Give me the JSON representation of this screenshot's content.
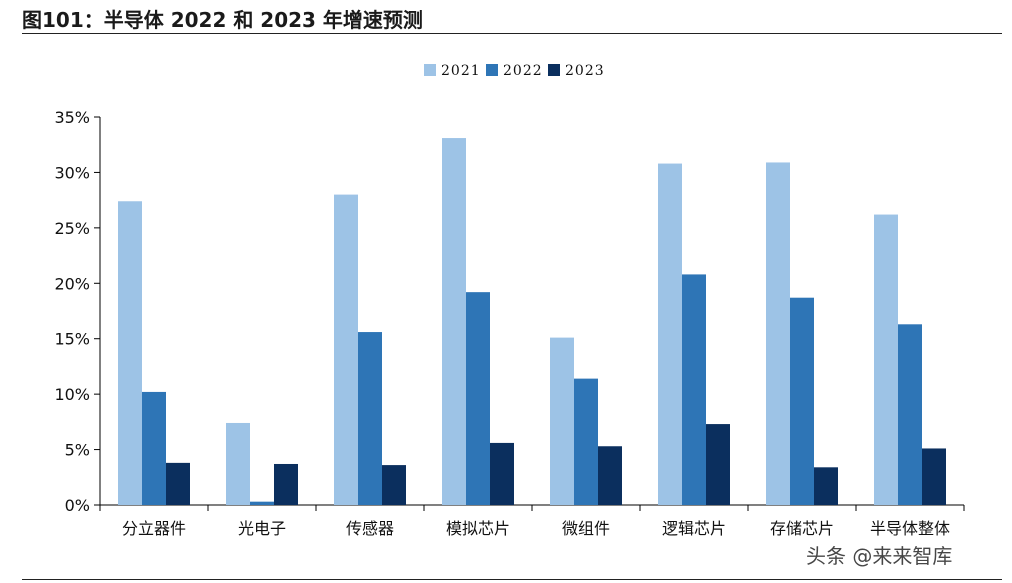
{
  "figure_title": "图101：半导体 2022 和 2023 年增速预测",
  "watermark": "头条 @来来智库",
  "chart_data": {
    "type": "bar",
    "title": "",
    "xlabel": "",
    "ylabel": "",
    "ylim": [
      0,
      35
    ],
    "y_ticks": [
      "0%",
      "5%",
      "10%",
      "15%",
      "20%",
      "25%",
      "30%",
      "35%"
    ],
    "grid": false,
    "legend_position": "top-center",
    "categories": [
      "分立器件",
      "光电子",
      "传感器",
      "模拟芯片",
      "微组件",
      "逻辑芯片",
      "存储芯片",
      "半导体整体"
    ],
    "series": [
      {
        "name": "2021",
        "color": "#9dc3e6",
        "values": [
          27.4,
          7.4,
          28.0,
          33.1,
          15.1,
          30.8,
          30.9,
          26.2
        ]
      },
      {
        "name": "2022",
        "color": "#2e75b6",
        "values": [
          10.2,
          0.3,
          15.6,
          19.2,
          11.4,
          20.8,
          18.7,
          16.3
        ]
      },
      {
        "name": "2023",
        "color": "#0b2f5e",
        "values": [
          3.8,
          3.7,
          3.6,
          5.6,
          5.3,
          7.3,
          3.4,
          5.1
        ]
      }
    ]
  }
}
